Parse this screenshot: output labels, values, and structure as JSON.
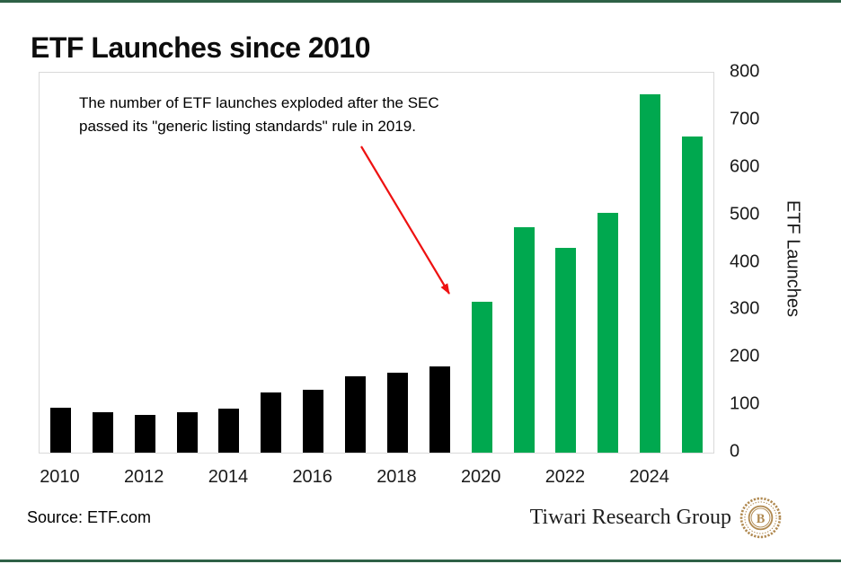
{
  "title": "ETF Launches since 2010",
  "annotation": {
    "line1": "The number of ETF launches exploded after the SEC",
    "line2": "passed its \"generic listing standards\" rule in 2019."
  },
  "axes": {
    "y_label": "ETF Launches",
    "y_ticks": [
      0,
      100,
      200,
      300,
      400,
      500,
      600,
      700,
      800
    ],
    "x_tick_labels": [
      "2010",
      "2012",
      "2014",
      "2016",
      "2018",
      "2020",
      "2022",
      "2024"
    ]
  },
  "footer": {
    "source": "Source: ETF.com",
    "brand": "Tiwari Research Group",
    "logo_letter": "B"
  },
  "colors": {
    "bar_before": "#000000",
    "bar_after": "#00a84f",
    "arrow": "#ee1111",
    "border_line": "#2e6146",
    "plot_border": "#d9d9d9",
    "logo": "#b08950"
  },
  "chart_data": {
    "type": "bar",
    "title": "ETF Launches since 2010",
    "categories": [
      2010,
      2011,
      2012,
      2013,
      2014,
      2015,
      2016,
      2017,
      2018,
      2019,
      2020,
      2021,
      2022,
      2023,
      2024,
      2025
    ],
    "values": [
      95,
      85,
      80,
      85,
      92,
      126,
      133,
      160,
      168,
      182,
      318,
      475,
      431,
      505,
      755,
      665
    ],
    "highlight_from_year": 2020,
    "color_before_2020": "#000000",
    "color_from_2020": "#00a84f",
    "xlabel": "",
    "ylabel": "ETF Launches",
    "ylim": [
      0,
      800
    ],
    "grid": false,
    "legend": "none",
    "y_axis_side": "right",
    "annotation": "The number of ETF launches exploded after the SEC passed its \"generic listing standards\" rule in 2019.",
    "annotation_arrow_points_to_year": 2020
  }
}
